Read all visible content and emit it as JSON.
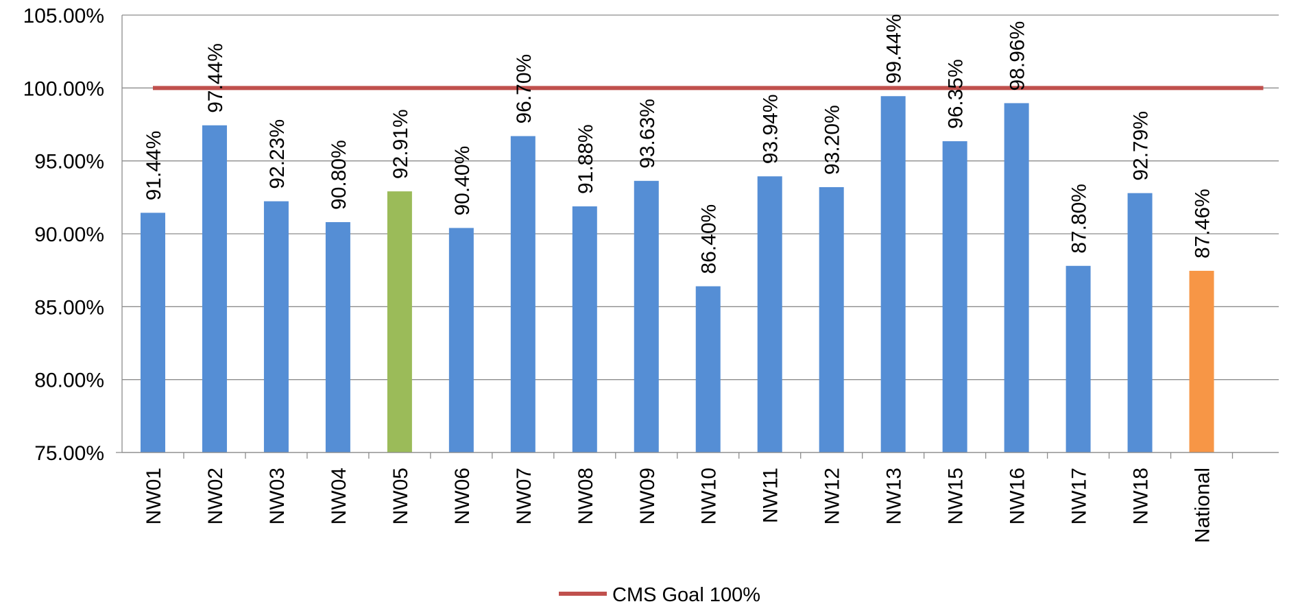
{
  "chart_data": {
    "type": "bar",
    "title": "",
    "xlabel": "",
    "ylabel": "",
    "categories": [
      "NW01",
      "NW02",
      "NW03",
      "NW04",
      "NW05",
      "NW06",
      "NW07",
      "NW08",
      "NW09",
      "NW10",
      "NW11",
      "NW12",
      "NW13",
      "NW15",
      "NW16",
      "NW17",
      "NW18",
      "National"
    ],
    "values": [
      91.44,
      97.44,
      92.23,
      90.8,
      92.91,
      90.4,
      96.7,
      91.88,
      93.63,
      86.4,
      93.94,
      93.2,
      99.44,
      96.35,
      98.96,
      87.8,
      92.79,
      87.46
    ],
    "data_labels": [
      "91.44%",
      "97.44%",
      "92.23%",
      "90.80%",
      "92.91%",
      "90.40%",
      "96.70%",
      "91.88%",
      "93.63%",
      "86.40%",
      "93.94%",
      "93.20%",
      "99.44%",
      "96.35%",
      "98.96%",
      "87.80%",
      "92.79%",
      "87.46%"
    ],
    "bar_colors": [
      "#558ed5",
      "#558ed5",
      "#558ed5",
      "#558ed5",
      "#9bbb59",
      "#558ed5",
      "#558ed5",
      "#558ed5",
      "#558ed5",
      "#558ed5",
      "#558ed5",
      "#558ed5",
      "#558ed5",
      "#558ed5",
      "#558ed5",
      "#558ed5",
      "#558ed5",
      "#f79646"
    ],
    "ylim": [
      75,
      105
    ],
    "yticks": [
      "75.00%",
      "80.00%",
      "85.00%",
      "90.00%",
      "95.00%",
      "100.00%",
      "105.00%"
    ],
    "ytick_values": [
      75,
      80,
      85,
      90,
      95,
      100,
      105
    ],
    "grid": true,
    "goal_line": {
      "name": "CMS Goal 100%",
      "value": 100,
      "color": "#c0504d"
    },
    "legend": {
      "position": "bottom",
      "entries": [
        "CMS Goal 100%"
      ]
    }
  }
}
